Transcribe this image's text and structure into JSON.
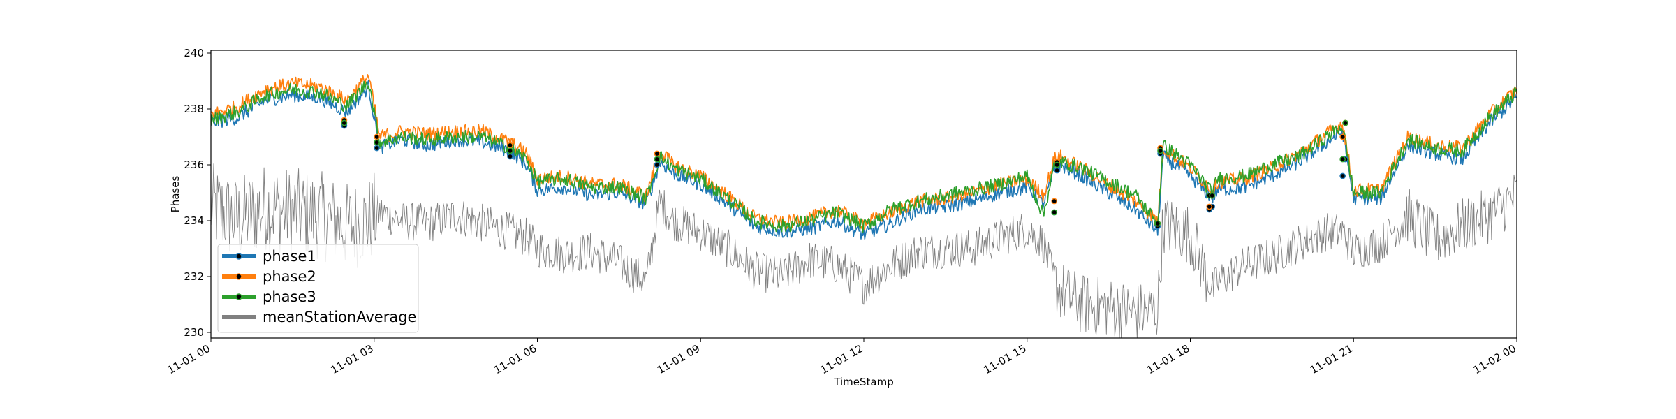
{
  "chart_data": {
    "type": "line",
    "title": "",
    "xlabel": "TimeStamp",
    "ylabel": "Phases",
    "xlim": [
      "11-01 00:00",
      "11-02 00:00"
    ],
    "ylim": [
      229.8,
      240.1
    ],
    "x_ticks": [
      "11-01 00",
      "11-01 03",
      "11-01 06",
      "11-01 09",
      "11-01 12",
      "11-01 15",
      "11-01 18",
      "11-01 21",
      "11-02 00"
    ],
    "y_ticks": [
      230,
      232,
      234,
      236,
      238,
      240
    ],
    "grid": false,
    "legend_position": "lower-left",
    "colors": {
      "phase1": "#1f77b4",
      "phase2": "#ff7f0e",
      "phase3": "#2ca02c",
      "meanStationAverage": "#808080",
      "marker": "#000000"
    },
    "series": [
      {
        "name": "phase1",
        "x_hours": [
          0.0,
          0.5,
          1.0,
          1.5,
          2.0,
          2.5,
          2.9,
          3.1,
          3.5,
          4.0,
          4.5,
          5.0,
          5.5,
          5.8,
          6.0,
          6.5,
          7.0,
          7.5,
          8.0,
          8.25,
          8.5,
          9.0,
          9.5,
          10.0,
          10.5,
          11.0,
          11.5,
          12.0,
          12.5,
          13.0,
          13.5,
          14.0,
          14.5,
          15.0,
          15.3,
          15.5,
          15.6,
          16.0,
          16.5,
          17.0,
          17.4,
          17.5,
          18.0,
          18.4,
          18.5,
          19.0,
          19.5,
          20.0,
          20.5,
          20.8,
          21.0,
          21.5,
          22.0,
          22.5,
          23.0,
          23.5,
          24.0
        ],
        "values": [
          237.5,
          237.7,
          238.3,
          238.5,
          238.4,
          237.9,
          238.8,
          236.6,
          236.9,
          236.7,
          236.9,
          236.8,
          236.5,
          236.0,
          235.1,
          235.2,
          234.9,
          235.0,
          234.6,
          236.1,
          235.7,
          235.3,
          234.6,
          233.8,
          233.6,
          233.7,
          234.0,
          233.5,
          233.9,
          234.4,
          234.5,
          234.7,
          235.0,
          235.2,
          234.6,
          235.8,
          236.0,
          235.6,
          235.0,
          234.4,
          233.6,
          236.3,
          235.6,
          234.8,
          235.1,
          235.2,
          235.6,
          236.1,
          236.8,
          237.2,
          234.8,
          234.8,
          236.7,
          236.4,
          236.2,
          237.5,
          238.4
        ]
      },
      {
        "name": "phase2",
        "x_hours": [
          0.0,
          0.5,
          1.0,
          1.5,
          2.0,
          2.5,
          2.9,
          3.1,
          3.5,
          4.0,
          4.5,
          5.0,
          5.5,
          5.8,
          6.0,
          6.5,
          7.0,
          7.5,
          8.0,
          8.25,
          8.5,
          9.0,
          9.5,
          10.0,
          10.5,
          11.0,
          11.5,
          12.0,
          12.5,
          13.0,
          13.5,
          14.0,
          14.5,
          15.0,
          15.3,
          15.5,
          15.6,
          16.0,
          16.5,
          17.0,
          17.4,
          17.5,
          18.0,
          18.4,
          18.5,
          19.0,
          19.5,
          20.0,
          20.5,
          20.8,
          21.0,
          21.5,
          22.0,
          22.5,
          23.0,
          23.5,
          24.0
        ],
        "values": [
          237.8,
          238.1,
          238.7,
          238.9,
          238.8,
          238.3,
          239.2,
          237.0,
          237.2,
          237.1,
          237.2,
          237.2,
          236.8,
          236.4,
          235.5,
          235.6,
          235.3,
          235.3,
          234.9,
          236.5,
          236.0,
          235.6,
          234.9,
          234.1,
          233.9,
          234.1,
          234.4,
          233.9,
          234.3,
          234.7,
          234.8,
          235.0,
          235.3,
          235.5,
          234.9,
          236.2,
          236.3,
          235.9,
          235.3,
          234.7,
          234.0,
          236.6,
          235.9,
          235.1,
          235.4,
          235.5,
          235.9,
          236.4,
          237.1,
          237.5,
          235.1,
          235.1,
          237.0,
          236.7,
          236.6,
          237.8,
          238.7
        ]
      },
      {
        "name": "phase3",
        "x_hours": [
          0.0,
          0.5,
          1.0,
          1.5,
          2.0,
          2.5,
          2.9,
          3.1,
          3.5,
          4.0,
          4.5,
          5.0,
          5.5,
          5.8,
          6.0,
          6.5,
          7.0,
          7.5,
          8.0,
          8.25,
          8.5,
          9.0,
          9.5,
          10.0,
          10.5,
          11.0,
          11.5,
          12.0,
          12.5,
          13.0,
          13.5,
          14.0,
          14.5,
          15.0,
          15.3,
          15.5,
          15.6,
          16.0,
          16.5,
          17.0,
          17.4,
          17.5,
          18.0,
          18.4,
          18.5,
          19.0,
          19.5,
          20.0,
          20.5,
          20.8,
          21.0,
          21.5,
          22.0,
          22.5,
          23.0,
          23.5,
          24.0
        ],
        "values": [
          237.6,
          237.9,
          238.5,
          238.7,
          238.6,
          238.1,
          239.0,
          236.8,
          237.0,
          236.9,
          237.0,
          237.0,
          236.6,
          236.2,
          235.4,
          235.5,
          235.2,
          235.2,
          234.8,
          236.3,
          235.9,
          235.5,
          234.8,
          234.0,
          233.8,
          234.0,
          234.3,
          233.8,
          234.4,
          234.7,
          234.9,
          235.1,
          235.3,
          235.6,
          234.2,
          236.0,
          236.1,
          235.9,
          235.4,
          234.9,
          233.9,
          236.7,
          236.0,
          235.0,
          235.5,
          235.6,
          236.0,
          236.3,
          237.0,
          237.4,
          235.0,
          235.0,
          236.9,
          236.6,
          236.5,
          237.7,
          238.6
        ]
      },
      {
        "name": "meanStationAverage",
        "x_hours": [
          0.0,
          0.5,
          1.0,
          1.5,
          2.0,
          2.5,
          2.9,
          3.1,
          3.5,
          4.0,
          4.5,
          5.0,
          5.5,
          5.8,
          6.0,
          6.5,
          7.0,
          7.5,
          8.0,
          8.25,
          8.5,
          9.0,
          9.5,
          10.0,
          10.5,
          11.0,
          11.5,
          12.0,
          12.5,
          13.0,
          13.5,
          14.0,
          14.5,
          15.0,
          15.3,
          15.5,
          15.6,
          16.0,
          16.5,
          17.0,
          17.4,
          17.5,
          18.0,
          18.4,
          18.5,
          19.0,
          19.5,
          20.0,
          20.5,
          20.8,
          21.0,
          21.5,
          22.0,
          22.5,
          23.0,
          23.5,
          24.0
        ],
        "values": [
          234.5,
          234.0,
          234.5,
          234.3,
          234.2,
          233.8,
          234.0,
          234.3,
          234.0,
          233.9,
          234.2,
          233.9,
          233.6,
          233.4,
          233.0,
          232.8,
          232.9,
          232.5,
          231.8,
          234.7,
          234.0,
          233.6,
          233.0,
          232.2,
          232.0,
          232.6,
          232.4,
          231.7,
          232.4,
          232.9,
          233.0,
          233.0,
          233.4,
          233.7,
          233.2,
          231.8,
          231.5,
          231.0,
          230.9,
          230.7,
          230.8,
          233.9,
          233.5,
          231.5,
          231.8,
          232.4,
          232.7,
          233.2,
          233.6,
          233.6,
          232.9,
          233.2,
          234.2,
          233.3,
          233.8,
          234.2,
          234.9
        ]
      }
    ],
    "markers": {
      "x_hours": [
        2.45,
        3.05,
        5.5,
        8.2,
        15.5,
        15.55,
        17.4,
        17.45,
        18.35,
        18.4,
        20.8,
        20.85
      ],
      "phase1": [
        237.4,
        236.6,
        236.3,
        236.0,
        234.3,
        235.8,
        233.8,
        236.4,
        234.4,
        234.5,
        235.6,
        236.2
      ],
      "phase2": [
        237.6,
        237.0,
        236.7,
        236.4,
        234.7,
        236.1,
        233.9,
        236.6,
        234.5,
        234.9,
        237.0,
        237.5
      ],
      "phase3": [
        237.5,
        236.8,
        236.5,
        236.2,
        234.3,
        236.0,
        233.9,
        236.5,
        234.9,
        234.9,
        236.2,
        237.5
      ]
    }
  }
}
